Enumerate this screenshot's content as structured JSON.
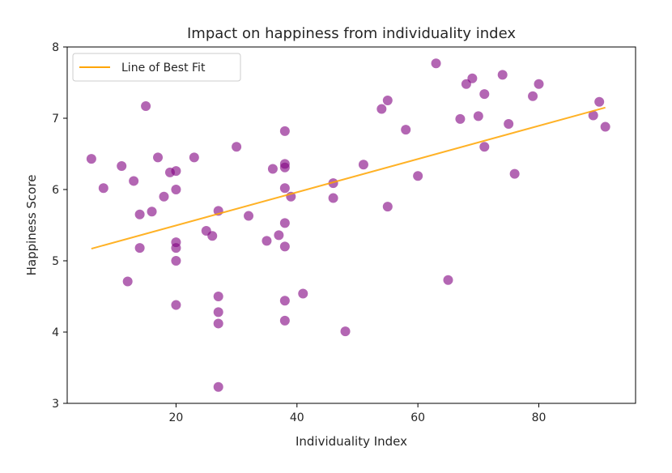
{
  "chart_data": {
    "type": "scatter",
    "title": "Impact on happiness from individuality index",
    "xlabel": "Individuality Index",
    "ylabel": "Happiness Score",
    "xlim": [
      2,
      96
    ],
    "ylim": [
      3,
      8
    ],
    "xticks": [
      20,
      40,
      60,
      80
    ],
    "yticks": [
      3,
      4,
      5,
      6,
      7,
      8
    ],
    "grid": false,
    "legend_position": "top-left",
    "point_color": "#800080",
    "point_opacity": 0.6,
    "line_color": "#ffa500",
    "legend_entries": [
      "Line of Best Fit"
    ],
    "points": [
      [
        6,
        6.43
      ],
      [
        8,
        6.02
      ],
      [
        11,
        6.33
      ],
      [
        12,
        4.71
      ],
      [
        13,
        6.12
      ],
      [
        14,
        5.65
      ],
      [
        14,
        5.18
      ],
      [
        15,
        7.17
      ],
      [
        16,
        5.69
      ],
      [
        17,
        6.45
      ],
      [
        18,
        5.9
      ],
      [
        19,
        6.24
      ],
      [
        20,
        6.26
      ],
      [
        20,
        6.0
      ],
      [
        20,
        5.26
      ],
      [
        20,
        5.18
      ],
      [
        20,
        5.0
      ],
      [
        20,
        4.38
      ],
      [
        23,
        6.45
      ],
      [
        25,
        5.42
      ],
      [
        26,
        5.35
      ],
      [
        27,
        5.7
      ],
      [
        27,
        4.5
      ],
      [
        27,
        4.28
      ],
      [
        27,
        4.12
      ],
      [
        27,
        3.23
      ],
      [
        30,
        6.6
      ],
      [
        32,
        5.63
      ],
      [
        35,
        5.28
      ],
      [
        36,
        6.29
      ],
      [
        37,
        5.36
      ],
      [
        38,
        6.82
      ],
      [
        38,
        6.36
      ],
      [
        38,
        6.31
      ],
      [
        38,
        6.02
      ],
      [
        38,
        5.53
      ],
      [
        38,
        5.2
      ],
      [
        38,
        4.44
      ],
      [
        38,
        4.16
      ],
      [
        39,
        5.9
      ],
      [
        41,
        4.54
      ],
      [
        46,
        6.09
      ],
      [
        46,
        5.88
      ],
      [
        48,
        4.01
      ],
      [
        51,
        6.35
      ],
      [
        54,
        7.13
      ],
      [
        55,
        7.25
      ],
      [
        55,
        5.76
      ],
      [
        58,
        6.84
      ],
      [
        60,
        6.19
      ],
      [
        63,
        7.77
      ],
      [
        65,
        4.73
      ],
      [
        67,
        6.99
      ],
      [
        68,
        7.48
      ],
      [
        69,
        7.56
      ],
      [
        70,
        7.03
      ],
      [
        71,
        7.34
      ],
      [
        71,
        6.6
      ],
      [
        74,
        7.61
      ],
      [
        75,
        6.92
      ],
      [
        76,
        6.22
      ],
      [
        79,
        7.31
      ],
      [
        80,
        7.48
      ],
      [
        89,
        7.04
      ],
      [
        90,
        7.23
      ],
      [
        91,
        6.88
      ]
    ],
    "fit_line": {
      "x": [
        6,
        91
      ],
      "y": [
        5.17,
        7.15
      ]
    }
  }
}
